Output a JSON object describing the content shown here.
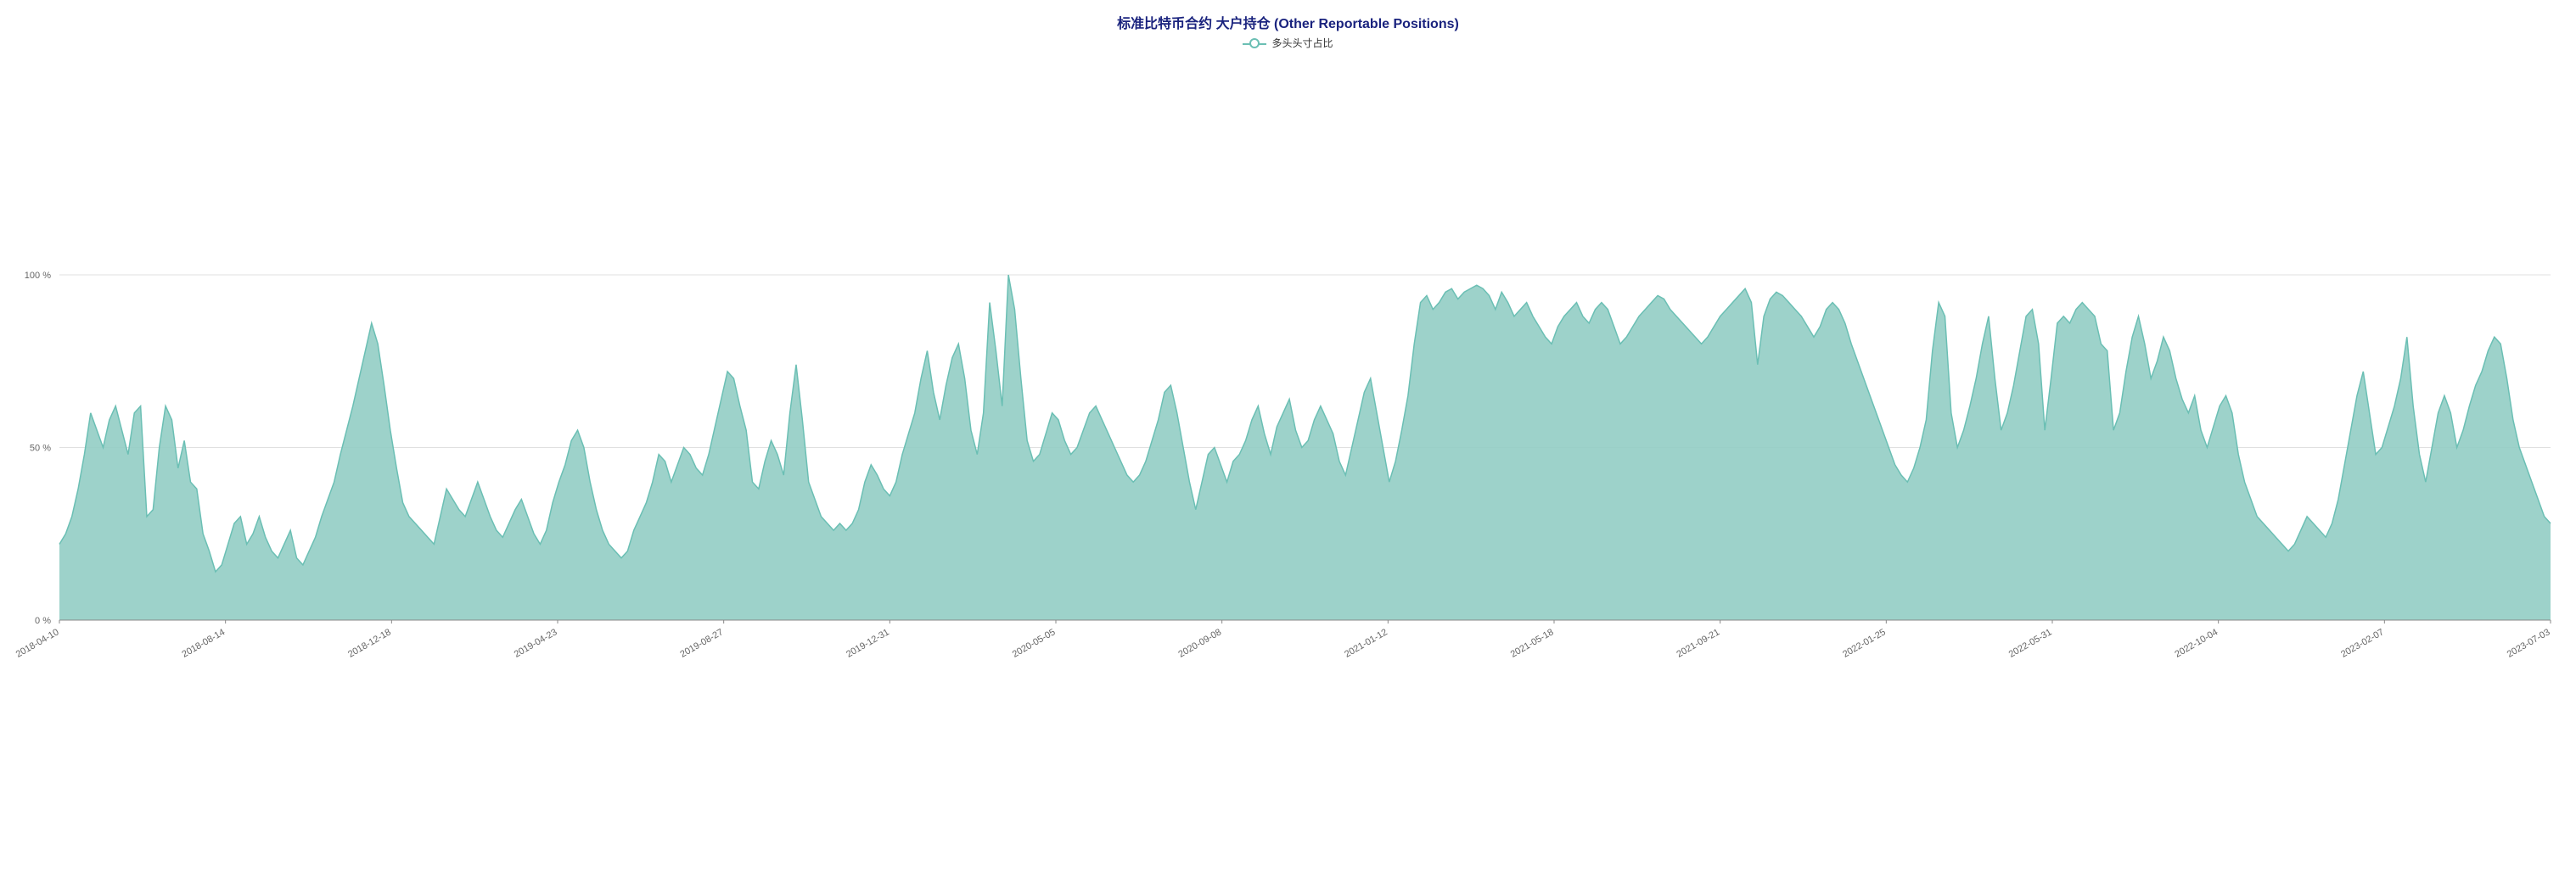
{
  "chart": {
    "type": "area",
    "title": "标准比特币合约 大户持仓 (Other Reportable Positions)",
    "title_color": "#1a237e",
    "title_fontsize": 16,
    "legend": {
      "label": "多头头寸占比",
      "label_fontsize": 12,
      "marker_type": "line-circle",
      "line_color": "#6bbfb4",
      "line_width": 2,
      "circle_border_color": "#6bbfb4",
      "circle_fill": "#ffffff",
      "circle_radius": 4
    },
    "series_color_stroke": "#6bbfb4",
    "series_color_fill": "#92cdc4",
    "series_fill_opacity": 0.9,
    "series_line_width": 1.5,
    "background_color": "#ffffff",
    "grid_color": "#e0e0e0",
    "grid_line_width": 1,
    "axis_color": "#888888",
    "tick_label_color": "#666666",
    "tick_fontsize": 11,
    "ylim": [
      0,
      100
    ],
    "y_ticks": [
      {
        "value": 0,
        "label": "0 %"
      },
      {
        "value": 50,
        "label": "50 %"
      },
      {
        "value": 100,
        "label": "100 %"
      }
    ],
    "x_categories": [
      "2018-04-10",
      "2018-08-14",
      "2018-12-18",
      "2019-04-23",
      "2019-08-27",
      "2019-12-31",
      "2020-05-05",
      "2020-09-08",
      "2021-01-12",
      "2021-05-18",
      "2021-09-21",
      "2022-01-25",
      "2022-05-31",
      "2022-10-04",
      "2023-02-07",
      "2023-07-03"
    ],
    "x_tick_rotation_deg": -30,
    "values": [
      22,
      25,
      30,
      38,
      48,
      60,
      55,
      50,
      58,
      62,
      55,
      48,
      60,
      62,
      30,
      32,
      50,
      62,
      58,
      44,
      52,
      40,
      38,
      25,
      20,
      14,
      16,
      22,
      28,
      30,
      22,
      25,
      30,
      24,
      20,
      18,
      22,
      26,
      18,
      16,
      20,
      24,
      30,
      35,
      40,
      48,
      55,
      62,
      70,
      78,
      86,
      80,
      68,
      55,
      44,
      34,
      30,
      28,
      26,
      24,
      22,
      30,
      38,
      35,
      32,
      30,
      35,
      40,
      35,
      30,
      26,
      24,
      28,
      32,
      35,
      30,
      25,
      22,
      26,
      34,
      40,
      45,
      52,
      55,
      50,
      40,
      32,
      26,
      22,
      20,
      18,
      20,
      26,
      30,
      34,
      40,
      48,
      46,
      40,
      45,
      50,
      48,
      44,
      42,
      48,
      56,
      64,
      72,
      70,
      62,
      55,
      40,
      38,
      46,
      52,
      48,
      42,
      60,
      74,
      58,
      40,
      35,
      30,
      28,
      26,
      28,
      26,
      28,
      32,
      40,
      45,
      42,
      38,
      36,
      40,
      48,
      54,
      60,
      70,
      78,
      66,
      58,
      68,
      76,
      80,
      70,
      55,
      48,
      60,
      92,
      78,
      62,
      100,
      90,
      70,
      52,
      46,
      48,
      54,
      60,
      58,
      52,
      48,
      50,
      55,
      60,
      62,
      58,
      54,
      50,
      46,
      42,
      40,
      42,
      46,
      52,
      58,
      66,
      68,
      60,
      50,
      40,
      32,
      40,
      48,
      50,
      45,
      40,
      46,
      48,
      52,
      58,
      62,
      54,
      48,
      56,
      60,
      64,
      55,
      50,
      52,
      58,
      62,
      58,
      54,
      46,
      42,
      50,
      58,
      66,
      70,
      60,
      50,
      40,
      46,
      55,
      65,
      80,
      92,
      94,
      90,
      92,
      95,
      96,
      93,
      95,
      96,
      97,
      96,
      94,
      90,
      95,
      92,
      88,
      90,
      92,
      88,
      85,
      82,
      80,
      85,
      88,
      90,
      92,
      88,
      86,
      90,
      92,
      90,
      85,
      80,
      82,
      85,
      88,
      90,
      92,
      94,
      93,
      90,
      88,
      86,
      84,
      82,
      80,
      82,
      85,
      88,
      90,
      92,
      94,
      96,
      92,
      74,
      88,
      93,
      95,
      94,
      92,
      90,
      88,
      85,
      82,
      85,
      90,
      92,
      90,
      86,
      80,
      75,
      70,
      65,
      60,
      55,
      50,
      45,
      42,
      40,
      44,
      50,
      58,
      78,
      92,
      88,
      60,
      50,
      55,
      62,
      70,
      80,
      88,
      70,
      55,
      60,
      68,
      78,
      88,
      90,
      80,
      55,
      70,
      86,
      88,
      86,
      90,
      92,
      90,
      88,
      80,
      78,
      55,
      60,
      72,
      82,
      88,
      80,
      70,
      75,
      82,
      78,
      70,
      64,
      60,
      65,
      55,
      50,
      56,
      62,
      65,
      60,
      48,
      40,
      35,
      30,
      28,
      26,
      24,
      22,
      20,
      22,
      26,
      30,
      28,
      26,
      24,
      28,
      35,
      45,
      55,
      65,
      72,
      60,
      48,
      50,
      56,
      62,
      70,
      82,
      62,
      48,
      40,
      50,
      60,
      65,
      60,
      50,
      55,
      62,
      68,
      72,
      78,
      82,
      80,
      70,
      58,
      50,
      45,
      40,
      35,
      30,
      28
    ]
  }
}
